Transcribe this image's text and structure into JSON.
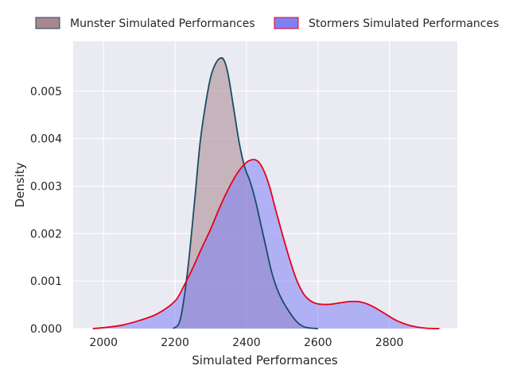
{
  "chart_data": {
    "type": "area",
    "title": "",
    "xlabel": "Simulated Performances",
    "ylabel": "Density",
    "xlim": [
      1915,
      2990
    ],
    "ylim": [
      0,
      0.00605
    ],
    "xticks": [
      2000,
      2200,
      2400,
      2600,
      2800
    ],
    "yticks": [
      "0.000",
      "0.001",
      "0.002",
      "0.003",
      "0.004",
      "0.005"
    ],
    "grid": true,
    "legend_position": "top-center",
    "series": [
      {
        "name": "Munster Simulated Performances",
        "fill_color": "#a8878f",
        "line_color": "#1b4b66",
        "x": [
          2195,
          2215,
          2235,
          2255,
          2270,
          2285,
          2300,
          2315,
          2330,
          2340,
          2350,
          2365,
          2380,
          2395,
          2410,
          2425,
          2440,
          2455,
          2470,
          2485,
          2500,
          2520,
          2540,
          2560,
          2580,
          2600
        ],
        "y": [
          0.0,
          0.0002,
          0.0012,
          0.0027,
          0.0039,
          0.0047,
          0.0053,
          0.0056,
          0.0057,
          0.0056,
          0.0053,
          0.0046,
          0.0039,
          0.0034,
          0.0031,
          0.0027,
          0.0022,
          0.0017,
          0.0012,
          0.00085,
          0.0006,
          0.00035,
          0.00015,
          4e-05,
          1e-05,
          0.0
        ]
      },
      {
        "name": "Stormers Simulated Performances",
        "fill_color": "#8080f5",
        "line_color": "#e8001a",
        "x": [
          1970,
          2000,
          2050,
          2100,
          2150,
          2200,
          2225,
          2250,
          2275,
          2300,
          2325,
          2350,
          2375,
          2400,
          2420,
          2435,
          2450,
          2465,
          2480,
          2500,
          2520,
          2540,
          2560,
          2580,
          2600,
          2630,
          2660,
          2690,
          2720,
          2750,
          2780,
          2820,
          2860,
          2900,
          2940
        ],
        "y": [
          0.0,
          2e-05,
          7e-05,
          0.00017,
          0.00031,
          0.00058,
          0.0009,
          0.00128,
          0.0017,
          0.0021,
          0.00255,
          0.00295,
          0.00328,
          0.0035,
          0.00356,
          0.0035,
          0.0033,
          0.00298,
          0.00255,
          0.002,
          0.00148,
          0.00103,
          0.00073,
          0.00058,
          0.00052,
          0.00051,
          0.00054,
          0.00057,
          0.00056,
          0.00048,
          0.00035,
          0.00017,
          6e-05,
          1e-05,
          0.0
        ]
      }
    ]
  }
}
